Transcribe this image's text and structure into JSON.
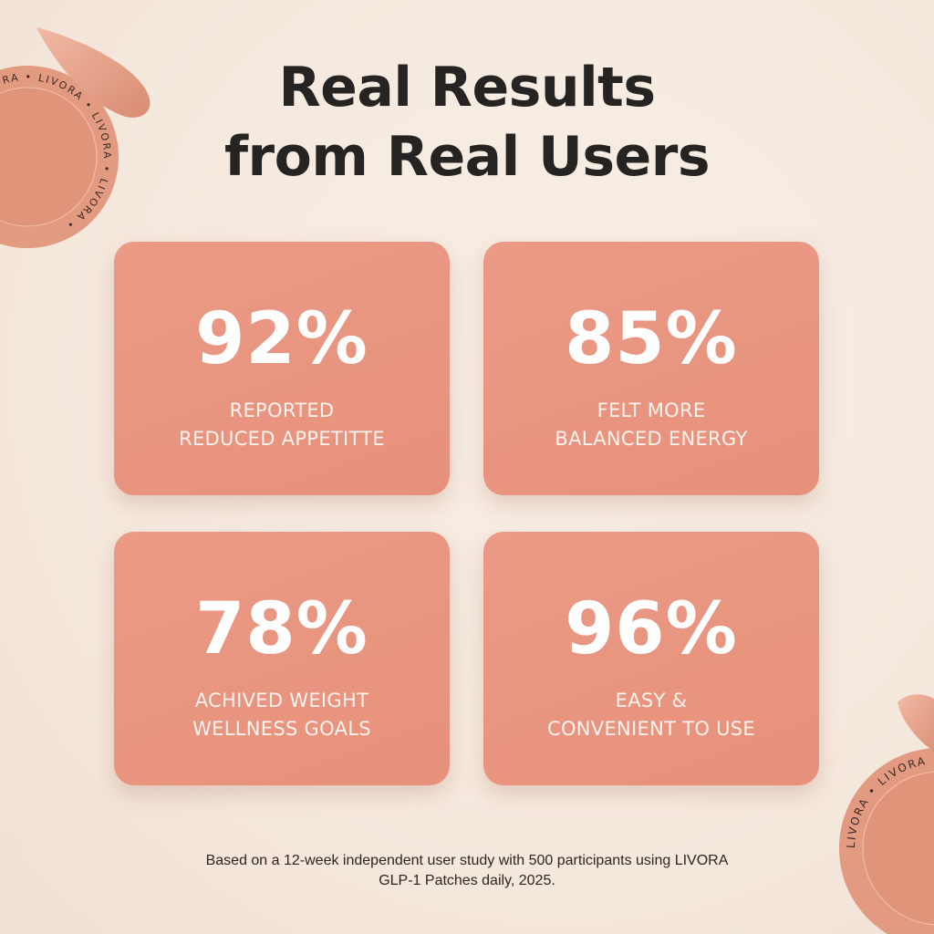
{
  "title": {
    "line1": "Real Results",
    "line2": "from Real Users"
  },
  "stats": [
    {
      "value": "92%",
      "label_line1": "REPORTED",
      "label_line2": "REDUCED APPETITTE"
    },
    {
      "value": "85%",
      "label_line1": "FELT MORE",
      "label_line2": "BALANCED ENERGY"
    },
    {
      "value": "78%",
      "label_line1": "ACHIVED WEIGHT",
      "label_line2": "WELLNESS GOALS"
    },
    {
      "value": "96%",
      "label_line1": "EASY &",
      "label_line2": "CONVENIENT TO USE"
    }
  ],
  "footnote": {
    "line1": "Based on a 12-week independent user study with 500 participants using LIVORA",
    "line2": "GLP-1 Patches daily, 2025."
  },
  "brand": "LIVORA",
  "colors": {
    "card": "#e8957f",
    "title": "#252422",
    "background": "#f6ebe1"
  }
}
